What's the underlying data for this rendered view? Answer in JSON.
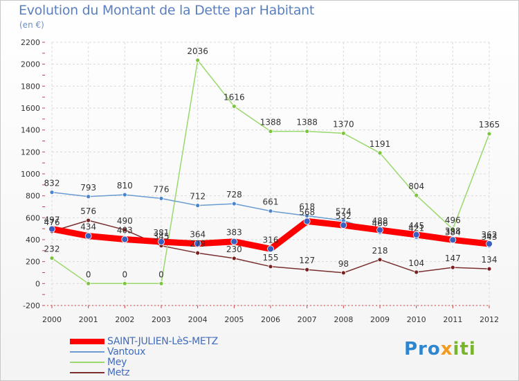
{
  "title": "Evolution du Montant de la Dette par Habitant",
  "subtitle": "(en €)",
  "logo": {
    "part1": "Pro",
    "part2": "x",
    "part3": "iti"
  },
  "chart_data": {
    "type": "line",
    "x": [
      "2000",
      "2001",
      "2002",
      "2003",
      "2004",
      "2005",
      "2006",
      "2007",
      "2008",
      "2009",
      "2010",
      "2011",
      "2012"
    ],
    "ylim": [
      -200,
      2200
    ],
    "yticks": [
      -200,
      0,
      200,
      400,
      600,
      800,
      1000,
      1200,
      1400,
      1600,
      1800,
      2000,
      2200
    ],
    "grid": true,
    "legend_position": "bottom-left",
    "series": [
      {
        "name": "SAINT-JULIEN-LèS-METZ",
        "color": "#ff0000",
        "marker": "#3b5fc0",
        "values": [
          497,
          434,
          403,
          381,
          364,
          383,
          316,
          568,
          532,
          488,
          445,
          398,
          362
        ],
        "thick": true
      },
      {
        "name": "Vantoux",
        "color": "#6a9bd1",
        "marker": "#4a84cc",
        "values": [
          832,
          793,
          810,
          776,
          712,
          728,
          661,
          618,
          574,
          466,
          421,
          384,
          343
        ]
      },
      {
        "name": "Mey",
        "color": "#99d86c",
        "marker": "#7cc63f",
        "values": [
          232,
          0,
          0,
          0,
          2036,
          1616,
          1388,
          1388,
          1370,
          1191,
          804,
          496,
          1365
        ]
      },
      {
        "name": "Metz",
        "color": "#7a2e2e",
        "marker": "#7a2020",
        "values": [
          476,
          576,
          490,
          345,
          279,
          230,
          155,
          127,
          98,
          218,
          104,
          147,
          134
        ]
      }
    ]
  }
}
